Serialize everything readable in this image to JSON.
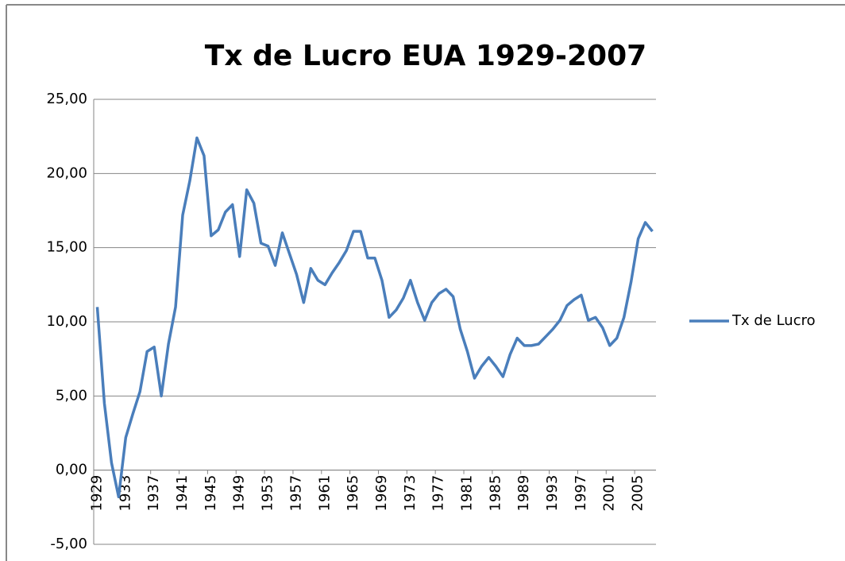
{
  "chart_data": {
    "type": "line",
    "title": "Tx de Lucro EUA 1929-2007",
    "categories": [
      "1929",
      null,
      null,
      null,
      "1933",
      null,
      null,
      null,
      "1937",
      null,
      null,
      null,
      "1941",
      null,
      null,
      null,
      "1945",
      null,
      null,
      null,
      "1949",
      null,
      null,
      null,
      "1953",
      null,
      null,
      null,
      "1957",
      null,
      null,
      null,
      "1961",
      null,
      null,
      null,
      "1965",
      null,
      null,
      null,
      "1969",
      null,
      null,
      null,
      "1973",
      null,
      null,
      null,
      "1977",
      null,
      null,
      null,
      "1981",
      null,
      null,
      null,
      "1985",
      null,
      null,
      null,
      "1989",
      null,
      null,
      null,
      "1993",
      null,
      null,
      null,
      "1997",
      null,
      null,
      null,
      "2001",
      null,
      null,
      null,
      "2005",
      null,
      null
    ],
    "series": [
      {
        "name": "Tx de Lucro",
        "color": "#4a7ebb",
        "values": [
          11.0,
          4.5,
          0.5,
          -1.8,
          2.2,
          3.8,
          5.3,
          8.0,
          8.3,
          5.0,
          8.5,
          11.0,
          17.2,
          19.5,
          22.4,
          21.2,
          15.8,
          16.2,
          17.4,
          17.9,
          14.4,
          18.9,
          18.0,
          15.3,
          15.1,
          13.8,
          16.0,
          14.6,
          13.2,
          11.3,
          13.6,
          12.8,
          12.5,
          13.3,
          14.0,
          14.8,
          16.1,
          16.1,
          14.3,
          14.3,
          12.8,
          10.3,
          10.8,
          11.6,
          12.8,
          11.3,
          10.1,
          11.3,
          11.9,
          12.2,
          11.7,
          9.5,
          8.0,
          6.2,
          7.0,
          7.6,
          7.0,
          6.3,
          7.8,
          8.9,
          8.4,
          8.4,
          8.5,
          9.0,
          9.5,
          10.1,
          11.1,
          11.5,
          11.8,
          10.1,
          10.3,
          9.6,
          8.4,
          8.9,
          10.3,
          12.7,
          15.6,
          16.7,
          16.1
        ]
      }
    ],
    "ylim": [
      -5,
      25
    ],
    "yticks": [
      {
        "value": -5,
        "label": "-5,00"
      },
      {
        "value": 0,
        "label": "0,00"
      },
      {
        "value": 5,
        "label": "5,00"
      },
      {
        "value": 10,
        "label": "10,00"
      },
      {
        "value": 15,
        "label": "15,00"
      },
      {
        "value": 20,
        "label": "20,00"
      },
      {
        "value": 25,
        "label": "25,00"
      }
    ],
    "grid": true,
    "legend": "right"
  }
}
